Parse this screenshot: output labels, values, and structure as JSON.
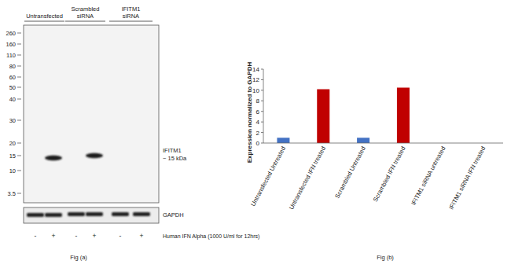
{
  "blot": {
    "lane_groups": [
      {
        "lines": [
          "Untransfected"
        ],
        "lanes": [
          0,
          1
        ]
      },
      {
        "lines": [
          "Scrambled",
          "siRNA"
        ],
        "lanes": [
          2,
          3
        ]
      },
      {
        "lines": [
          "IFITM1",
          "siRNA"
        ],
        "lanes": [
          4,
          5
        ]
      }
    ],
    "markers": [
      260,
      160,
      110,
      80,
      60,
      50,
      40,
      30,
      20,
      15,
      10,
      3.5
    ],
    "band_label": [
      "IFITM1",
      "~ 15 kDa"
    ],
    "band_intensity": [
      0,
      1,
      0,
      1,
      0,
      0
    ],
    "loading_control": "GAPDH",
    "loading_intensity": [
      1,
      1,
      1,
      1,
      1,
      1
    ],
    "treatment_signs": [
      "-",
      "+",
      "-",
      "+",
      "-",
      "+"
    ],
    "treatment_label": "Human IFN Alpha (1000 U/ml for 12hrs)",
    "caption": "Fig (a)"
  },
  "chart_data": {
    "type": "bar",
    "categories": [
      "Untransfected Untreated",
      "Untransfected  IFN treated",
      "Scrambled Untreated",
      "Scrambled  IFN treated",
      "IFITM1 siRNA untreated",
      "IFITM1 siRNA IFN treated"
    ],
    "values": [
      1,
      10.2,
      1,
      10.5,
      0,
      0
    ],
    "colors": [
      "#4472c4",
      "#c00000",
      "#4472c4",
      "#c00000",
      "#4472c4",
      "#c00000"
    ],
    "y_label": "Expression normalized to GAPDH",
    "ylim": [
      0,
      14
    ],
    "yticks": [
      0,
      2,
      4,
      6,
      8,
      10,
      12,
      14
    ],
    "grid": false,
    "caption": "Fig (b)"
  }
}
